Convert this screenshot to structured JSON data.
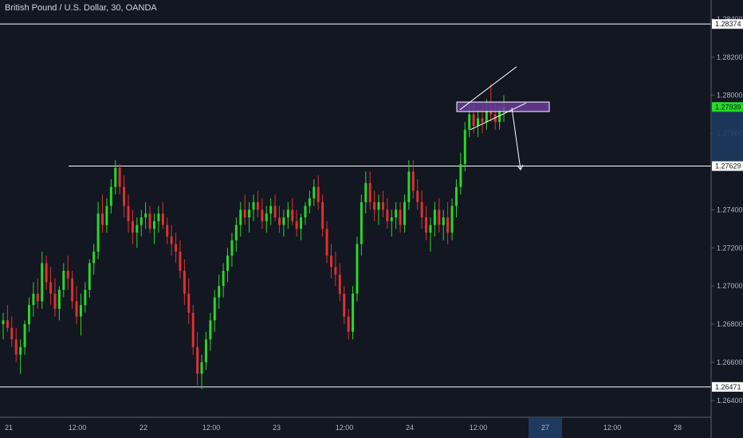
{
  "header": {
    "symbol_title": "British Pound / U.S. Dollar, 30, OANDA"
  },
  "colors": {
    "background": "#131722",
    "up": "#26d926",
    "down": "#e03030",
    "level_line": "#ffffff",
    "zone_fill": "#6a3d9a",
    "current_price_bg": "#22dd22",
    "time_highlight": "#1e3a5f"
  },
  "chart_data": {
    "type": "candlestick",
    "timeframe": "30",
    "y_axis": {
      "min": 1.2632,
      "max": 1.285,
      "ticks": [
        "1.28400",
        "1.28200",
        "1.28000",
        "1.27800",
        "1.27400",
        "1.27200",
        "1.27000",
        "1.26800",
        "1.26600",
        "1.26400"
      ],
      "tick_values": [
        1.284,
        1.282,
        1.28,
        1.278,
        1.274,
        1.272,
        1.27,
        1.268,
        1.266,
        1.264
      ]
    },
    "x_axis": {
      "ticks": [
        "21",
        "12:00",
        "22",
        "12:00",
        "23",
        "12:00",
        "24",
        "12:00",
        "27",
        "12:00",
        "28"
      ],
      "highlighted_tick": "27"
    },
    "horizontal_levels": [
      {
        "label": "1.28374",
        "value": 1.28374
      },
      {
        "label": "1.27629",
        "value": 1.27629
      },
      {
        "label": "1.26471",
        "value": 1.26471
      }
    ],
    "current_price": {
      "label": "1.27939",
      "value": 1.27939
    },
    "zone": {
      "price_low": 1.27915,
      "price_high": 1.27965
    },
    "channel_upper": [
      [
        1.27925,
        1.2815
      ]
    ],
    "channel_lower": [
      [
        1.2782,
        1.2796
      ]
    ],
    "projection": {
      "from": 1.27935,
      "to": 1.2761
    },
    "candles_approx": [
      [
        1.268,
        1.2686,
        1.2672,
        1.2682
      ],
      [
        1.2682,
        1.269,
        1.2676,
        1.2678
      ],
      [
        1.2678,
        1.2684,
        1.2668,
        1.2672
      ],
      [
        1.2672,
        1.2678,
        1.266,
        1.2664
      ],
      [
        1.2664,
        1.2672,
        1.2654,
        1.2668
      ],
      [
        1.2668,
        1.2682,
        1.2664,
        1.268
      ],
      [
        1.268,
        1.2694,
        1.2676,
        1.269
      ],
      [
        1.269,
        1.2702,
        1.2684,
        1.2696
      ],
      [
        1.2696,
        1.2704,
        1.2688,
        1.2692
      ],
      [
        1.2692,
        1.2718,
        1.2688,
        1.2712
      ],
      [
        1.2712,
        1.2716,
        1.2698,
        1.2702
      ],
      [
        1.2702,
        1.271,
        1.269,
        1.2696
      ],
      [
        1.2696,
        1.2704,
        1.2684,
        1.2688
      ],
      [
        1.2688,
        1.27,
        1.2682,
        1.2698
      ],
      [
        1.2698,
        1.2712,
        1.2694,
        1.2708
      ],
      [
        1.2708,
        1.2716,
        1.2698,
        1.2704
      ],
      [
        1.2704,
        1.2708,
        1.2688,
        1.2692
      ],
      [
        1.2692,
        1.27,
        1.268,
        1.2684
      ],
      [
        1.2684,
        1.2696,
        1.2674,
        1.269
      ],
      [
        1.269,
        1.2702,
        1.2686,
        1.2698
      ],
      [
        1.2698,
        1.2714,
        1.2694,
        1.2712
      ],
      [
        1.2712,
        1.2722,
        1.2706,
        1.2718
      ],
      [
        1.2718,
        1.2744,
        1.2714,
        1.2738
      ],
      [
        1.2738,
        1.2748,
        1.2728,
        1.2732
      ],
      [
        1.2732,
        1.2746,
        1.2728,
        1.2742
      ],
      [
        1.2742,
        1.2756,
        1.2738,
        1.2752
      ],
      [
        1.2752,
        1.2766,
        1.2748,
        1.2762
      ],
      [
        1.2762,
        1.2764,
        1.2748,
        1.2752
      ],
      [
        1.2752,
        1.2758,
        1.2736,
        1.2742
      ],
      [
        1.2742,
        1.2748,
        1.2728,
        1.2734
      ],
      [
        1.2734,
        1.274,
        1.2722,
        1.2728
      ],
      [
        1.2728,
        1.2736,
        1.272,
        1.2732
      ],
      [
        1.2732,
        1.274,
        1.2726,
        1.2736
      ],
      [
        1.2736,
        1.2744,
        1.273,
        1.2738
      ],
      [
        1.2738,
        1.2742,
        1.2728,
        1.273
      ],
      [
        1.273,
        1.2738,
        1.2722,
        1.2734
      ],
      [
        1.2734,
        1.2742,
        1.2728,
        1.2738
      ],
      [
        1.2738,
        1.2744,
        1.273,
        1.2732
      ],
      [
        1.2732,
        1.2736,
        1.2722,
        1.2726
      ],
      [
        1.2726,
        1.2732,
        1.2716,
        1.2722
      ],
      [
        1.2722,
        1.2728,
        1.2712,
        1.2718
      ],
      [
        1.2718,
        1.2724,
        1.2704,
        1.2708
      ],
      [
        1.2708,
        1.2714,
        1.269,
        1.2696
      ],
      [
        1.2696,
        1.2704,
        1.268,
        1.2686
      ],
      [
        1.2686,
        1.269,
        1.2664,
        1.2668
      ],
      [
        1.2668,
        1.2676,
        1.2648,
        1.2654
      ],
      [
        1.2654,
        1.2664,
        1.2646,
        1.266
      ],
      [
        1.266,
        1.2676,
        1.2656,
        1.2672
      ],
      [
        1.2672,
        1.2686,
        1.2666,
        1.2682
      ],
      [
        1.2682,
        1.2698,
        1.2676,
        1.2694
      ],
      [
        1.2694,
        1.2706,
        1.2688,
        1.27
      ],
      [
        1.27,
        1.2712,
        1.2694,
        1.2708
      ],
      [
        1.2708,
        1.272,
        1.2702,
        1.2716
      ],
      [
        1.2716,
        1.2728,
        1.271,
        1.2724
      ],
      [
        1.2724,
        1.2736,
        1.2718,
        1.2732
      ],
      [
        1.2732,
        1.2744,
        1.2726,
        1.274
      ],
      [
        1.274,
        1.2748,
        1.2732,
        1.2736
      ],
      [
        1.2736,
        1.2744,
        1.2728,
        1.274
      ],
      [
        1.274,
        1.2748,
        1.2734,
        1.2744
      ],
      [
        1.2744,
        1.275,
        1.2736,
        1.274
      ],
      [
        1.274,
        1.2746,
        1.273,
        1.2734
      ],
      [
        1.2734,
        1.2742,
        1.2728,
        1.2738
      ],
      [
        1.2738,
        1.2746,
        1.2732,
        1.2742
      ],
      [
        1.2742,
        1.2748,
        1.2734,
        1.2736
      ],
      [
        1.2736,
        1.2742,
        1.2728,
        1.2732
      ],
      [
        1.2732,
        1.274,
        1.2726,
        1.2736
      ],
      [
        1.2736,
        1.2744,
        1.273,
        1.274
      ],
      [
        1.274,
        1.2746,
        1.2732,
        1.2734
      ],
      [
        1.2734,
        1.274,
        1.2726,
        1.273
      ],
      [
        1.273,
        1.2738,
        1.2724,
        1.2736
      ],
      [
        1.2736,
        1.2744,
        1.2732,
        1.2742
      ],
      [
        1.2742,
        1.275,
        1.2738,
        1.2746
      ],
      [
        1.2746,
        1.2756,
        1.2742,
        1.2752
      ],
      [
        1.2752,
        1.2758,
        1.274,
        1.2744
      ],
      [
        1.2744,
        1.2748,
        1.2726,
        1.273
      ],
      [
        1.273,
        1.2734,
        1.2712,
        1.2716
      ],
      [
        1.2716,
        1.2722,
        1.2704,
        1.271
      ],
      [
        1.271,
        1.2718,
        1.27,
        1.2706
      ],
      [
        1.2706,
        1.2712,
        1.2692,
        1.2696
      ],
      [
        1.2696,
        1.27,
        1.268,
        1.2684
      ],
      [
        1.2684,
        1.2688,
        1.2672,
        1.2676
      ],
      [
        1.2676,
        1.27,
        1.2672,
        1.2696
      ],
      [
        1.2696,
        1.2726,
        1.2692,
        1.2722
      ],
      [
        1.2722,
        1.2748,
        1.2716,
        1.2744
      ],
      [
        1.2744,
        1.276,
        1.2738,
        1.2754
      ],
      [
        1.2754,
        1.276,
        1.274,
        1.2744
      ],
      [
        1.2744,
        1.275,
        1.2734,
        1.274
      ],
      [
        1.274,
        1.2748,
        1.2732,
        1.2744
      ],
      [
        1.2744,
        1.275,
        1.2736,
        1.274
      ],
      [
        1.274,
        1.2746,
        1.273,
        1.2734
      ],
      [
        1.2734,
        1.274,
        1.2726,
        1.2736
      ],
      [
        1.2736,
        1.2744,
        1.273,
        1.274
      ],
      [
        1.274,
        1.2744,
        1.2728,
        1.2732
      ],
      [
        1.2732,
        1.2748,
        1.2728,
        1.2744
      ],
      [
        1.2744,
        1.2766,
        1.274,
        1.276
      ],
      [
        1.276,
        1.2766,
        1.2746,
        1.275
      ],
      [
        1.275,
        1.2756,
        1.274,
        1.2744
      ],
      [
        1.2744,
        1.275,
        1.273,
        1.2736
      ],
      [
        1.2736,
        1.2742,
        1.2724,
        1.2728
      ],
      [
        1.2728,
        1.2736,
        1.2718,
        1.2732
      ],
      [
        1.2732,
        1.2744,
        1.2726,
        1.274
      ],
      [
        1.274,
        1.2746,
        1.2728,
        1.2732
      ],
      [
        1.2732,
        1.274,
        1.2724,
        1.2736
      ],
      [
        1.2736,
        1.2744,
        1.2722,
        1.2728
      ],
      [
        1.2728,
        1.2746,
        1.2724,
        1.2742
      ],
      [
        1.2742,
        1.2756,
        1.2736,
        1.2752
      ],
      [
        1.2752,
        1.277,
        1.2748,
        1.2764
      ],
      [
        1.2764,
        1.2786,
        1.276,
        1.2782
      ],
      [
        1.2782,
        1.2796,
        1.2778,
        1.279
      ],
      [
        1.279,
        1.2796,
        1.278,
        1.2784
      ],
      [
        1.2784,
        1.2792,
        1.2778,
        1.2788
      ],
      [
        1.2788,
        1.2794,
        1.278,
        1.2786
      ],
      [
        1.2786,
        1.2798,
        1.2782,
        1.2792
      ],
      [
        1.2792,
        1.2806,
        1.2786,
        1.279
      ],
      [
        1.279,
        1.2796,
        1.2782,
        1.2786
      ],
      [
        1.2786,
        1.2794,
        1.2782,
        1.2792
      ],
      [
        1.2792,
        1.28,
        1.2786,
        1.2794
      ]
    ]
  }
}
